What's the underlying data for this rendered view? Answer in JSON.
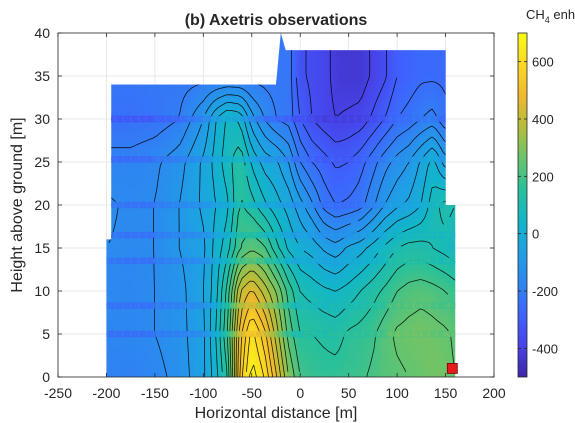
{
  "chart_data": {
    "type": "heatmap",
    "title": "(b) Axetris observations",
    "xlabel": "Horizontal distance [m]",
    "ylabel": "Height above ground [m]",
    "xlim": [
      -250,
      200
    ],
    "ylim": [
      0,
      40
    ],
    "xticks": [
      "-250",
      "-200",
      "-150",
      "-100",
      "-50",
      "0",
      "50",
      "100",
      "150",
      "200"
    ],
    "yticks": [
      "0",
      "5",
      "10",
      "15",
      "20",
      "25",
      "30",
      "35",
      "40"
    ],
    "grid": true,
    "colorbar": {
      "label_main": "CH",
      "label_sub": "4",
      "label_rest": " enh. [ppb]",
      "range": [
        -500,
        700
      ],
      "ticks": [
        "-400",
        "-200",
        "0",
        "200",
        "400",
        "600"
      ],
      "colormap": "parula",
      "colors": [
        "#3e26a8",
        "#4743e9",
        "#3e63fe",
        "#2e86f1",
        "#1ea1e4",
        "#12b6c8",
        "#28c09b",
        "#6ac46b",
        "#b4bd3a",
        "#f1b92e",
        "#fbd924",
        "#f9fb14"
      ]
    },
    "domain_outline": [
      [
        -200,
        0
      ],
      [
        -200,
        16
      ],
      [
        -195,
        16
      ],
      [
        -195,
        34
      ],
      [
        -25,
        34
      ],
      [
        -20,
        40
      ],
      [
        -15,
        38
      ],
      [
        150,
        38
      ],
      [
        150,
        20
      ],
      [
        160,
        20
      ],
      [
        160,
        0
      ]
    ],
    "enhancement_field": {
      "x": [
        -200,
        -175,
        -150,
        -125,
        -100,
        -87,
        -75,
        -62,
        -50,
        -37,
        -25,
        -12,
        0,
        12,
        25,
        37,
        50,
        62,
        75,
        87,
        100,
        112,
        125,
        137,
        150,
        160
      ],
      "z": [
        0,
        5,
        10,
        15,
        20,
        25,
        30,
        35,
        40
      ],
      "values": [
        [
          -180,
          -190,
          -170,
          -130,
          -60,
          30,
          150,
          520,
          680,
          600,
          460,
          300,
          200,
          180,
          170,
          170,
          180,
          190,
          210,
          230,
          240,
          250,
          260,
          280,
          270,
          250
        ],
        [
          -170,
          -170,
          -150,
          -120,
          -60,
          50,
          200,
          480,
          620,
          520,
          380,
          230,
          150,
          150,
          140,
          130,
          160,
          170,
          190,
          230,
          260,
          270,
          280,
          270,
          260,
          240
        ],
        [
          -160,
          -170,
          -150,
          -120,
          -50,
          30,
          170,
          400,
          460,
          380,
          300,
          180,
          100,
          80,
          60,
          50,
          70,
          100,
          130,
          160,
          200,
          220,
          230,
          220,
          200,
          180
        ],
        [
          -150,
          -160,
          -150,
          -100,
          -60,
          20,
          80,
          200,
          240,
          210,
          120,
          40,
          0,
          -20,
          -60,
          -80,
          -40,
          -20,
          20,
          60,
          100,
          120,
          120,
          100,
          80,
          60
        ],
        [
          -140,
          -160,
          -150,
          -100,
          -40,
          0,
          40,
          160,
          120,
          60,
          20,
          -20,
          -80,
          -140,
          -220,
          -250,
          -240,
          -220,
          -160,
          -100,
          -60,
          -40,
          0,
          80,
          120,
          100
        ],
        [
          null,
          -180,
          -160,
          -120,
          -40,
          20,
          80,
          140,
          40,
          -20,
          -40,
          -100,
          -200,
          -250,
          -280,
          -310,
          -300,
          -270,
          -220,
          -170,
          -130,
          -100,
          -40,
          20,
          -80,
          null
        ],
        [
          null,
          -240,
          -230,
          -200,
          -100,
          0,
          60,
          40,
          -80,
          -150,
          -200,
          -220,
          -300,
          -350,
          -380,
          -400,
          -390,
          -380,
          -340,
          -300,
          -250,
          -230,
          -200,
          -180,
          -240,
          null
        ],
        [
          null,
          null,
          null,
          null,
          null,
          null,
          null,
          null,
          null,
          null,
          null,
          -220,
          -340,
          -360,
          -380,
          -420,
          -430,
          -430,
          -390,
          -360,
          -300,
          -280,
          -260,
          -260,
          null,
          null
        ],
        [
          null,
          null,
          null,
          null,
          null,
          null,
          null,
          null,
          null,
          null,
          null,
          null,
          null,
          null,
          null,
          null,
          null,
          null,
          null,
          null,
          null,
          null,
          null,
          null,
          null,
          null
        ]
      ]
    },
    "observation_heights": [
      5,
      8.3,
      13.5,
      16.5,
      20,
      25.3,
      30
    ],
    "marker": {
      "x": 157,
      "y": 1,
      "color": "#e41a1c"
    }
  }
}
